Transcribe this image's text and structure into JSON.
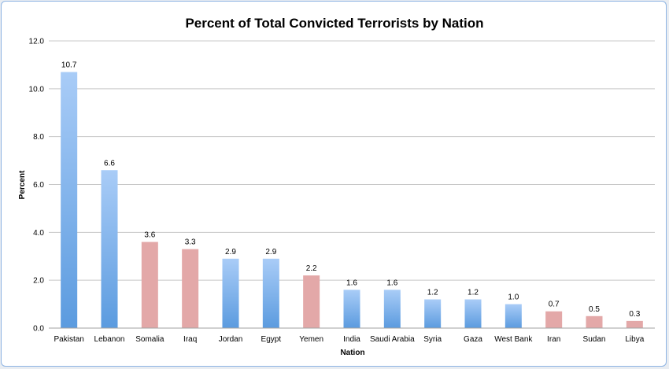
{
  "chart_data": {
    "type": "bar",
    "title": "Percent of Total Convicted Terrorists by Nation",
    "xlabel": "Nation",
    "ylabel": "Percent",
    "ylim": [
      0,
      12
    ],
    "yticks": [
      "0.0",
      "2.0",
      "4.0",
      "6.0",
      "8.0",
      "10.0",
      "12.0"
    ],
    "grid": true,
    "categories": [
      "Pakistan",
      "Lebanon",
      "Somalia",
      "Iraq",
      "Jordan",
      "Egypt",
      "Yemen",
      "India",
      "Saudi Arabia",
      "Syria",
      "Gaza",
      "West Bank",
      "Iran",
      "Sudan",
      "Libya"
    ],
    "values": [
      10.7,
      6.6,
      3.6,
      3.3,
      2.9,
      2.9,
      2.2,
      1.6,
      1.6,
      1.2,
      1.2,
      1.0,
      0.7,
      0.5,
      0.3
    ],
    "value_labels": [
      "10.7",
      "6.6",
      "3.6",
      "3.3",
      "2.9",
      "2.9",
      "2.2",
      "1.6",
      "1.6",
      "1.2",
      "1.2",
      "1.0",
      "0.7",
      "0.5",
      "0.3"
    ],
    "bar_colors": [
      "blue",
      "blue",
      "red",
      "red",
      "blue",
      "blue",
      "red",
      "blue",
      "blue",
      "blue",
      "blue",
      "blue",
      "red",
      "red",
      "red"
    ],
    "palette": {
      "blue_top": "#a9ccf7",
      "blue_bottom": "#5b9bdf",
      "red": "#e3a8a8",
      "grid": "#c8c8c8",
      "frame": "#8eb4e3"
    }
  }
}
